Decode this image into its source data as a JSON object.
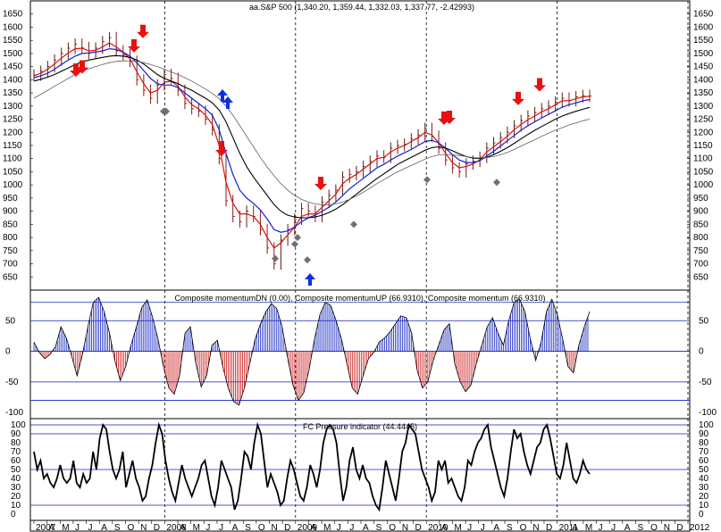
{
  "chart_data": [
    {
      "type": "line",
      "title": "aa.S&P 500 (1,340.20, 1,359.44, 1,332.03, 1,337.77, -2.42993)",
      "ylim": [
        600,
        1700
      ],
      "yticks": [
        650,
        700,
        750,
        800,
        850,
        900,
        950,
        1000,
        1050,
        1100,
        1150,
        1200,
        1250,
        1300,
        1350,
        1400,
        1450,
        1500,
        1550,
        1600,
        1650
      ],
      "series": [
        {
          "key": "price",
          "values": [
            1418,
            1432,
            1450,
            1475,
            1500,
            1520,
            1535,
            1522,
            1500,
            1520,
            1545,
            1560,
            1510,
            1495,
            1470,
            1400,
            1360,
            1330,
            1380,
            1420,
            1405,
            1360,
            1310,
            1290,
            1280,
            1250,
            1210,
            1100,
            940,
            880,
            860,
            900,
            880,
            830,
            760,
            700,
            790,
            830,
            870,
            910,
            900,
            880,
            935,
            960,
            980,
            1030,
            1040,
            1050,
            1070,
            1090,
            1110,
            1105,
            1140,
            1150,
            1155,
            1175,
            1190,
            1215,
            1185,
            1140,
            1095,
            1065,
            1050,
            1080,
            1090,
            1105,
            1140,
            1160,
            1180,
            1200,
            1225,
            1245,
            1262,
            1275,
            1290,
            1300,
            1315,
            1330,
            1320,
            1335,
            1340,
            1338
          ]
        },
        {
          "key": "ma-red",
          "values": [
            1415,
            1425,
            1440,
            1460,
            1482,
            1502,
            1518,
            1520,
            1510,
            1512,
            1525,
            1540,
            1525,
            1505,
            1480,
            1430,
            1385,
            1350,
            1360,
            1390,
            1395,
            1375,
            1335,
            1305,
            1290,
            1265,
            1230,
            1150,
            1010,
            930,
            890,
            890,
            880,
            850,
            800,
            760,
            780,
            810,
            840,
            880,
            890,
            890,
            915,
            940,
            965,
            1005,
            1025,
            1040,
            1060,
            1080,
            1100,
            1105,
            1125,
            1140,
            1150,
            1165,
            1180,
            1200,
            1190,
            1160,
            1120,
            1085,
            1065,
            1070,
            1080,
            1095,
            1125,
            1145,
            1165,
            1185,
            1210,
            1230,
            1248,
            1262,
            1278,
            1290,
            1305,
            1320,
            1320,
            1328,
            1335,
            1337
          ]
        },
        {
          "key": "ma-blue",
          "values": [
            1408,
            1415,
            1425,
            1440,
            1458,
            1475,
            1490,
            1500,
            1502,
            1505,
            1510,
            1518,
            1515,
            1505,
            1490,
            1465,
            1435,
            1405,
            1385,
            1380,
            1380,
            1370,
            1350,
            1330,
            1310,
            1290,
            1265,
            1210,
            1120,
            1040,
            980,
            950,
            930,
            905,
            870,
            830,
            820,
            825,
            840,
            860,
            875,
            885,
            900,
            915,
            935,
            960,
            985,
            1005,
            1025,
            1045,
            1065,
            1078,
            1095,
            1110,
            1122,
            1135,
            1150,
            1165,
            1170,
            1160,
            1140,
            1115,
            1095,
            1085,
            1085,
            1092,
            1110,
            1128,
            1148,
            1168,
            1188,
            1208,
            1225,
            1240,
            1255,
            1268,
            1282,
            1296,
            1305,
            1312,
            1320,
            1325
          ]
        },
        {
          "key": "ma-black",
          "values": [
            1395,
            1402,
            1410,
            1420,
            1432,
            1445,
            1458,
            1468,
            1475,
            1480,
            1485,
            1490,
            1492,
            1490,
            1485,
            1475,
            1460,
            1440,
            1420,
            1405,
            1395,
            1385,
            1372,
            1360,
            1345,
            1330,
            1312,
            1285,
            1240,
            1180,
            1120,
            1070,
            1030,
            995,
            960,
            925,
            900,
            885,
            878,
            875,
            875,
            878,
            885,
            895,
            908,
            925,
            945,
            965,
            985,
            1005,
            1025,
            1042,
            1060,
            1078,
            1092,
            1105,
            1118,
            1132,
            1142,
            1145,
            1140,
            1130,
            1118,
            1108,
            1102,
            1100,
            1105,
            1115,
            1128,
            1142,
            1158,
            1175,
            1192,
            1208,
            1222,
            1236,
            1250,
            1262,
            1272,
            1280,
            1288,
            1295
          ]
        },
        {
          "key": "ma-gray",
          "values": [
            1330,
            1345,
            1360,
            1375,
            1390,
            1405,
            1420,
            1432,
            1442,
            1450,
            1458,
            1465,
            1470,
            1472,
            1472,
            1470,
            1465,
            1458,
            1450,
            1440,
            1430,
            1420,
            1408,
            1395,
            1380,
            1365,
            1348,
            1328,
            1300,
            1265,
            1225,
            1185,
            1145,
            1105,
            1068,
            1035,
            1005,
            980,
            960,
            945,
            935,
            928,
            925,
            925,
            928,
            935,
            945,
            958,
            972,
            988,
            1005,
            1020,
            1035,
            1050,
            1062,
            1074,
            1086,
            1098,
            1108,
            1114,
            1116,
            1115,
            1112,
            1108,
            1104,
            1102,
            1104,
            1108,
            1115,
            1124,
            1135,
            1148,
            1160,
            1172,
            1185,
            1197,
            1208,
            1218,
            1228,
            1236,
            1244,
            1250
          ]
        }
      ],
      "up_arrows": [
        1408,
        1420,
        1500,
        1555,
        1225,
        1228,
        1300,
        1352
      ],
      "down_arrows": [
        1213,
        1211,
        1167,
        1157,
        1145,
        1146,
        1062,
        1064
      ],
      "diamonds": [
        1280,
        1280,
        720,
        775,
        715,
        800,
        850,
        1020,
        1010
      ],
      "month_labels": [
        "2007",
        "A",
        "M",
        "J",
        "J",
        "A",
        "S",
        "O",
        "N",
        "D",
        "2008",
        "A",
        "M",
        "J",
        "J",
        "A",
        "S",
        "O",
        "N",
        "D",
        "2009",
        "A",
        "M",
        "J",
        "J",
        "A",
        "S",
        "O",
        "N",
        "D",
        "2010",
        "A",
        "M",
        "J",
        "J",
        "A",
        "S",
        "O",
        "N",
        "D",
        "2011",
        "A",
        "M",
        "J",
        "J",
        "A",
        "S",
        "O",
        "N",
        "D",
        "2012"
      ]
    },
    {
      "type": "bar",
      "title": "Composite momentumDN (0.00), Composite momentumUP (66.9310), Composite momentum (66.9310)",
      "ylim": [
        -110,
        100
      ],
      "yticks": [
        50,
        0,
        -50,
        -100
      ],
      "guide_lines": [
        80,
        50,
        0,
        -50,
        -80
      ],
      "colors": {
        "up": "#1020c0",
        "down": "#c81414"
      },
      "values": [
        15,
        -2,
        -12,
        -5,
        8,
        40,
        22,
        -8,
        -40,
        -5,
        40,
        80,
        88,
        65,
        30,
        -15,
        -48,
        -25,
        10,
        40,
        72,
        84,
        55,
        20,
        -25,
        -60,
        -70,
        -40,
        30,
        40,
        -20,
        -58,
        -40,
        10,
        18,
        -25,
        -60,
        -82,
        -88,
        -60,
        -20,
        20,
        45,
        65,
        78,
        70,
        40,
        -10,
        -55,
        -80,
        -68,
        -30,
        20,
        60,
        80,
        75,
        50,
        20,
        -20,
        -60,
        -70,
        -40,
        -12,
        -2,
        15,
        22,
        32,
        45,
        58,
        55,
        30,
        -30,
        -60,
        -50,
        -15,
        10,
        35,
        45,
        -20,
        -50,
        -66,
        -55,
        -20,
        10,
        40,
        55,
        30,
        10,
        50,
        80,
        85,
        65,
        20,
        -15,
        15,
        65,
        85,
        60,
        20,
        -25,
        -35,
        10,
        40,
        65
      ]
    },
    {
      "type": "line",
      "title": "FC Pressure indicator (44.4445)",
      "ylim": [
        0,
        100
      ],
      "yticks": [
        0,
        10,
        20,
        30,
        40,
        50,
        60,
        70,
        80,
        90,
        100
      ],
      "guide_lines": [
        100,
        90,
        50,
        10
      ],
      "values": [
        70,
        50,
        60,
        40,
        45,
        35,
        30,
        40,
        55,
        40,
        35,
        40,
        60,
        35,
        30,
        45,
        35,
        40,
        70,
        50,
        85,
        100,
        95,
        70,
        50,
        40,
        50,
        70,
        30,
        45,
        60,
        40,
        30,
        15,
        20,
        40,
        55,
        80,
        100,
        90,
        60,
        40,
        25,
        15,
        35,
        55,
        40,
        30,
        20,
        30,
        40,
        55,
        60,
        40,
        20,
        10,
        30,
        60,
        50,
        40,
        30,
        5,
        15,
        40,
        70,
        65,
        50,
        80,
        100,
        90,
        60,
        30,
        45,
        35,
        25,
        10,
        15,
        40,
        60,
        50,
        35,
        20,
        15,
        30,
        55,
        45,
        30,
        50,
        80,
        95,
        100,
        95,
        80,
        45,
        15,
        30,
        60,
        75,
        50,
        40,
        55,
        40,
        35,
        20,
        10,
        5,
        30,
        60,
        45,
        30,
        15,
        40,
        70,
        80,
        100,
        95,
        90,
        70,
        50,
        40,
        30,
        15,
        25,
        60,
        50,
        60,
        35,
        40,
        30,
        20,
        15,
        30,
        60,
        55,
        70,
        80,
        85,
        95,
        100,
        75,
        60,
        45,
        30,
        20,
        40,
        70,
        95,
        85,
        90,
        70,
        55,
        45,
        60,
        75,
        80,
        95,
        100,
        85,
        65,
        45,
        40,
        55,
        80,
        60,
        40,
        35,
        45,
        60,
        50,
        45
      ]
    }
  ]
}
